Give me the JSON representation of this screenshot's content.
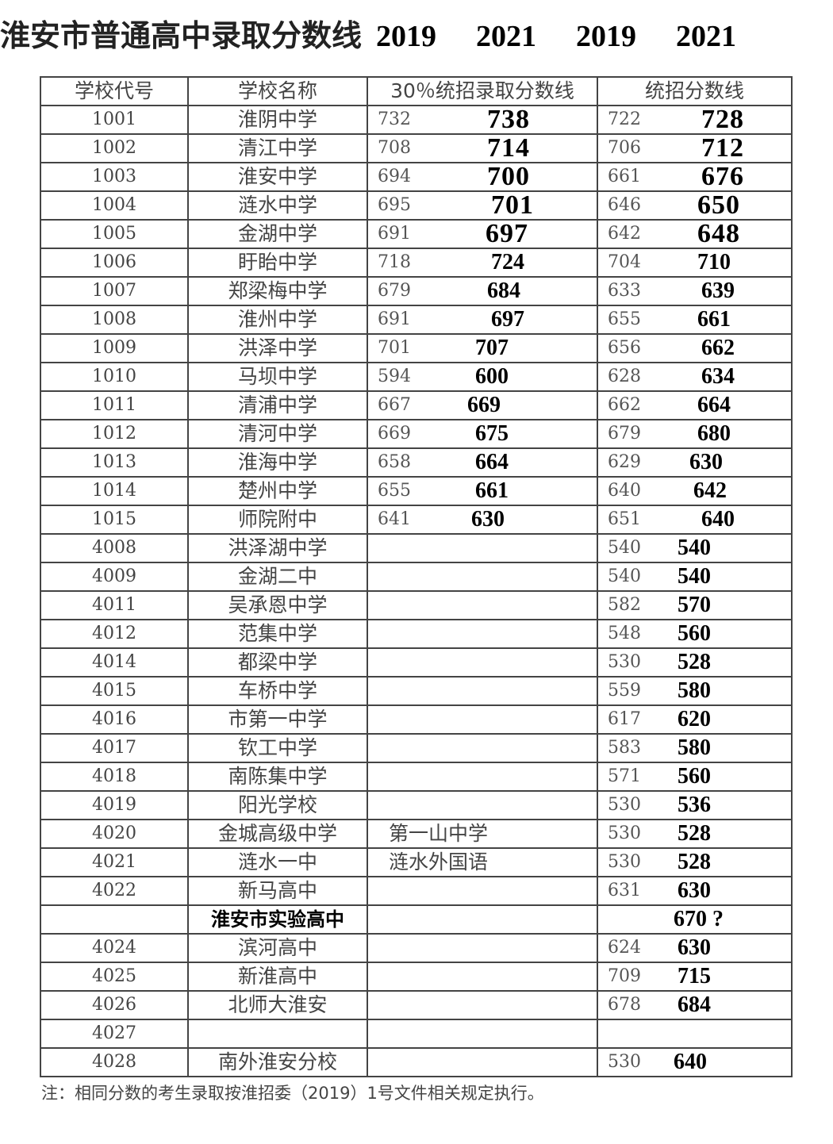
{
  "title": "淮安市普通高中录取分数线",
  "year_labels": [
    "2019",
    "2021",
    "2019",
    "2021"
  ],
  "headers": [
    "学校代号",
    "学校名称",
    "30％统招录取分数线",
    "统招分数线"
  ],
  "rows": [
    {
      "code": "1001",
      "name": "淮阴中学",
      "a2019": "732",
      "a2021": "738",
      "b2019": "722",
      "b2021": "728"
    },
    {
      "code": "1002",
      "name": "清江中学",
      "a2019": "708",
      "a2021": "714",
      "b2019": "706",
      "b2021": "712"
    },
    {
      "code": "1003",
      "name": "淮安中学",
      "a2019": "694",
      "a2021": "700",
      "b2019": "661",
      "b2021": "676"
    },
    {
      "code": "1004",
      "name": "涟水中学",
      "a2019": "695",
      "a2021": "701",
      "b2019": "646",
      "b2021": "650"
    },
    {
      "code": "1005",
      "name": "金湖中学",
      "a2019": "691",
      "a2021": "697",
      "b2019": "642",
      "b2021": "648"
    },
    {
      "code": "1006",
      "name": "盱眙中学",
      "a2019": "718",
      "a2021": "724",
      "b2019": "704",
      "b2021": "710"
    },
    {
      "code": "1007",
      "name": "郑梁梅中学",
      "a2019": "679",
      "a2021": "684",
      "b2019": "633",
      "b2021": "639"
    },
    {
      "code": "1008",
      "name": "淮州中学",
      "a2019": "691",
      "a2021": "697",
      "b2019": "655",
      "b2021": "661"
    },
    {
      "code": "1009",
      "name": "洪泽中学",
      "a2019": "701",
      "a2021": "707",
      "b2019": "656",
      "b2021": "662"
    },
    {
      "code": "1010",
      "name": "马坝中学",
      "a2019": "594",
      "a2021": "600",
      "b2019": "628",
      "b2021": "634"
    },
    {
      "code": "1011",
      "name": "清浦中学",
      "a2019": "667",
      "a2021": "669",
      "b2019": "662",
      "b2021": "664"
    },
    {
      "code": "1012",
      "name": "清河中学",
      "a2019": "669",
      "a2021": "675",
      "b2019": "679",
      "b2021": "680"
    },
    {
      "code": "1013",
      "name": "淮海中学",
      "a2019": "658",
      "a2021": "664",
      "b2019": "629",
      "b2021": "630"
    },
    {
      "code": "1014",
      "name": "楚州中学",
      "a2019": "655",
      "a2021": "661",
      "b2019": "640",
      "b2021": "642"
    },
    {
      "code": "1015",
      "name": "师院附中",
      "a2019": "641",
      "a2021": "630",
      "b2019": "651",
      "b2021": "640"
    },
    {
      "code": "4008",
      "name": "洪泽湖中学",
      "b2019": "540",
      "b2021": "540"
    },
    {
      "code": "4009",
      "name": "金湖二中",
      "b2019": "540",
      "b2021": "540"
    },
    {
      "code": "4011",
      "name": "吴承恩中学",
      "b2019": "582",
      "b2021": "570"
    },
    {
      "code": "4012",
      "name": "范集中学",
      "b2019": "548",
      "b2021": "560"
    },
    {
      "code": "4014",
      "name": "都梁中学",
      "b2019": "530",
      "b2021": "528"
    },
    {
      "code": "4015",
      "name": "车桥中学",
      "b2019": "559",
      "b2021": "580"
    },
    {
      "code": "4016",
      "name": "市第一中学",
      "b2019": "617",
      "b2021": "620"
    },
    {
      "code": "4017",
      "name": "钦工中学",
      "b2019": "583",
      "b2021": "580"
    },
    {
      "code": "4018",
      "name": "南陈集中学",
      "b2019": "571",
      "b2021": "560"
    },
    {
      "code": "4019",
      "name": "阳光学校",
      "b2019": "530",
      "b2021": "536"
    },
    {
      "code": "4020",
      "name": "金城高级中学",
      "note": "第一山中学",
      "b2019": "530",
      "b2021": "528"
    },
    {
      "code": "4021",
      "name": "涟水一中",
      "note": "涟水外国语",
      "b2019": "530",
      "b2021": "528"
    },
    {
      "code": "4022",
      "name": "新马高中",
      "b2019": "631",
      "b2021": "630"
    },
    {
      "code": "",
      "name": "淮安市实验高中",
      "bold": true,
      "b2021": "670 ?"
    },
    {
      "code": "4024",
      "name": "滨河高中",
      "b2019": "624",
      "b2021": "630"
    },
    {
      "code": "4025",
      "name": "新淮高中",
      "b2019": "709",
      "b2021": "715"
    },
    {
      "code": "4026",
      "name": "北师大淮安",
      "b2019": "678",
      "b2021": "684"
    },
    {
      "code": "4027",
      "name": ""
    },
    {
      "code": "4028",
      "name": "南外淮安分校",
      "b2019": "530",
      "b2021": "640"
    }
  ],
  "footnote": "注：相同分数的考生录取按淮招委（2019）1号文件相关规定执行。"
}
